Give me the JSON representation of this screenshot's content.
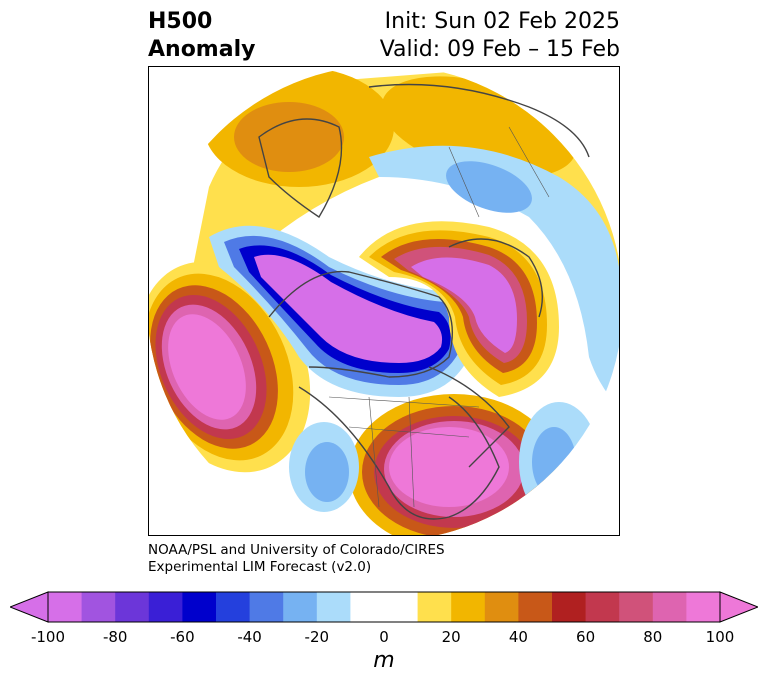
{
  "title": {
    "line1": "H500",
    "line2": "Anomaly",
    "init": "Init: Sun 02 Feb 2025",
    "valid": "Valid: 09 Feb – 15 Feb"
  },
  "credit": {
    "line1": "NOAA/PSL and University of Colorado/CIRES",
    "line2": "Experimental LIM Forecast (v2.0)"
  },
  "colorbar": {
    "units": "m",
    "ticks": [
      "-100",
      "-80",
      "-60",
      "-40",
      "-20",
      "0",
      "20",
      "40",
      "60",
      "80",
      "100"
    ],
    "colors": [
      "#d66fe8",
      "#a154e0",
      "#6c36d9",
      "#3a1fd6",
      "#0000cc",
      "#2440dd",
      "#4f7ae6",
      "#76b2f2",
      "#abdcfa",
      "#ffffff",
      "#ffffff",
      "#ffe04d",
      "#f2b600",
      "#e08e10",
      "#c85818",
      "#b02020",
      "#c2384e",
      "#d0527a",
      "#de64b0",
      "#ee78d8"
    ],
    "extend_low": "#d66fe8",
    "extend_high": "#ee78d8"
  }
}
